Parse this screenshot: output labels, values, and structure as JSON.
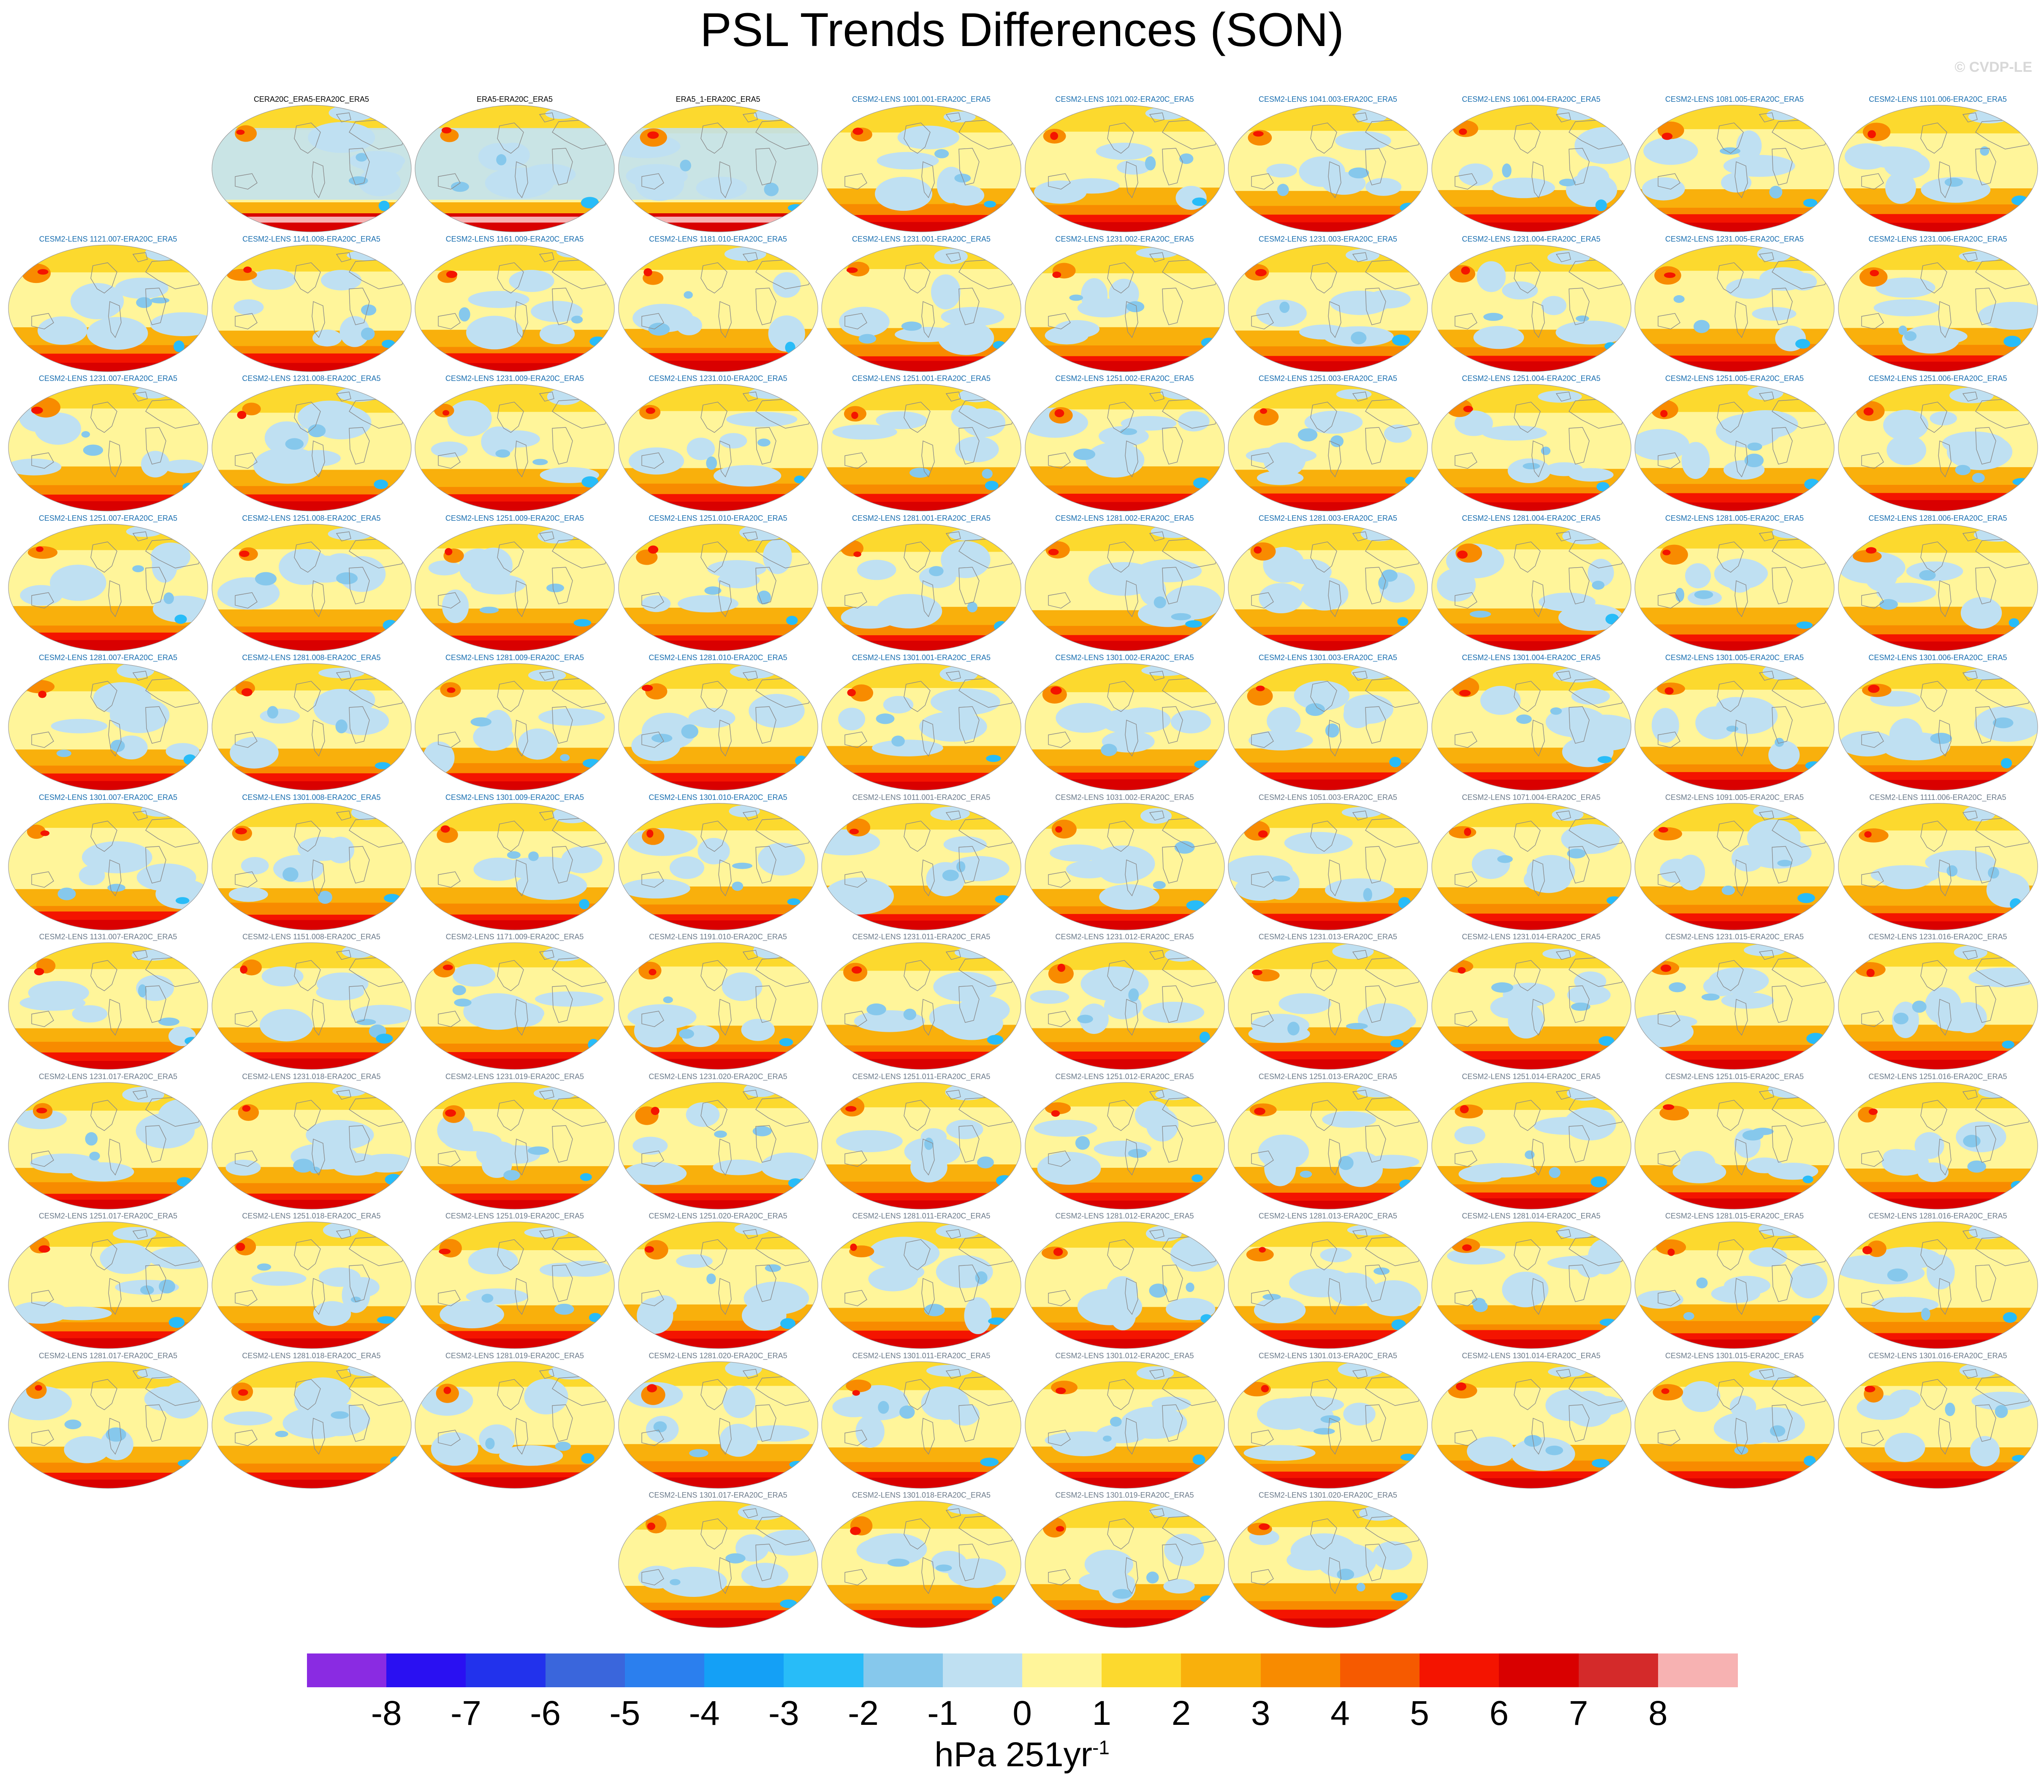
{
  "title": "PSL Trends Differences (SON)",
  "watermark": "© CVDP-LE",
  "colors": {
    "obs_label": "#000000",
    "member_label_blue": "#1a6fb0",
    "member_label_gray": "#6c7b8b",
    "coast": "#8a8a8a"
  },
  "chart_data": {
    "type": "heatmap",
    "title": "PSL Trends Differences (SON)",
    "panels": [
      {
        "label": "CERA20C_ERA5-ERA20C_ERA5",
        "style": "obs"
      },
      {
        "label": "ERA5-ERA20C_ERA5",
        "style": "obs"
      },
      {
        "label": "ERA5_1-ERA20C_ERA5",
        "style": "obs"
      },
      {
        "label": "CESM2-LENS 1001.001-ERA20C_ERA5",
        "style": "blue"
      },
      {
        "label": "CESM2-LENS 1021.002-ERA20C_ERA5",
        "style": "blue"
      },
      {
        "label": "CESM2-LENS 1041.003-ERA20C_ERA5",
        "style": "blue"
      },
      {
        "label": "CESM2-LENS 1061.004-ERA20C_ERA5",
        "style": "blue"
      },
      {
        "label": "CESM2-LENS 1081.005-ERA20C_ERA5",
        "style": "blue"
      },
      {
        "label": "CESM2-LENS 1101.006-ERA20C_ERA5",
        "style": "blue"
      },
      {
        "label": "CESM2-LENS 1121.007-ERA20C_ERA5",
        "style": "blue"
      },
      {
        "label": "CESM2-LENS 1141.008-ERA20C_ERA5",
        "style": "blue"
      },
      {
        "label": "CESM2-LENS 1161.009-ERA20C_ERA5",
        "style": "blue"
      },
      {
        "label": "CESM2-LENS 1181.010-ERA20C_ERA5",
        "style": "blue"
      },
      {
        "label": "CESM2-LENS 1231.001-ERA20C_ERA5",
        "style": "blue"
      },
      {
        "label": "CESM2-LENS 1231.002-ERA20C_ERA5",
        "style": "blue"
      },
      {
        "label": "CESM2-LENS 1231.003-ERA20C_ERA5",
        "style": "blue"
      },
      {
        "label": "CESM2-LENS 1231.004-ERA20C_ERA5",
        "style": "blue"
      },
      {
        "label": "CESM2-LENS 1231.005-ERA20C_ERA5",
        "style": "blue"
      },
      {
        "label": "CESM2-LENS 1231.006-ERA20C_ERA5",
        "style": "blue"
      },
      {
        "label": "CESM2-LENS 1231.007-ERA20C_ERA5",
        "style": "blue"
      },
      {
        "label": "CESM2-LENS 1231.008-ERA20C_ERA5",
        "style": "blue"
      },
      {
        "label": "CESM2-LENS 1231.009-ERA20C_ERA5",
        "style": "blue"
      },
      {
        "label": "CESM2-LENS 1231.010-ERA20C_ERA5",
        "style": "blue"
      },
      {
        "label": "CESM2-LENS 1251.001-ERA20C_ERA5",
        "style": "blue"
      },
      {
        "label": "CESM2-LENS 1251.002-ERA20C_ERA5",
        "style": "blue"
      },
      {
        "label": "CESM2-LENS 1251.003-ERA20C_ERA5",
        "style": "blue"
      },
      {
        "label": "CESM2-LENS 1251.004-ERA20C_ERA5",
        "style": "blue"
      },
      {
        "label": "CESM2-LENS 1251.005-ERA20C_ERA5",
        "style": "blue"
      },
      {
        "label": "CESM2-LENS 1251.006-ERA20C_ERA5",
        "style": "blue"
      },
      {
        "label": "CESM2-LENS 1251.007-ERA20C_ERA5",
        "style": "blue"
      },
      {
        "label": "CESM2-LENS 1251.008-ERA20C_ERA5",
        "style": "blue"
      },
      {
        "label": "CESM2-LENS 1251.009-ERA20C_ERA5",
        "style": "blue"
      },
      {
        "label": "CESM2-LENS 1251.010-ERA20C_ERA5",
        "style": "blue"
      },
      {
        "label": "CESM2-LENS 1281.001-ERA20C_ERA5",
        "style": "blue"
      },
      {
        "label": "CESM2-LENS 1281.002-ERA20C_ERA5",
        "style": "blue"
      },
      {
        "label": "CESM2-LENS 1281.003-ERA20C_ERA5",
        "style": "blue"
      },
      {
        "label": "CESM2-LENS 1281.004-ERA20C_ERA5",
        "style": "blue"
      },
      {
        "label": "CESM2-LENS 1281.005-ERA20C_ERA5",
        "style": "blue"
      },
      {
        "label": "CESM2-LENS 1281.006-ERA20C_ERA5",
        "style": "blue"
      },
      {
        "label": "CESM2-LENS 1281.007-ERA20C_ERA5",
        "style": "blue"
      },
      {
        "label": "CESM2-LENS 1281.008-ERA20C_ERA5",
        "style": "blue"
      },
      {
        "label": "CESM2-LENS 1281.009-ERA20C_ERA5",
        "style": "blue"
      },
      {
        "label": "CESM2-LENS 1281.010-ERA20C_ERA5",
        "style": "blue"
      },
      {
        "label": "CESM2-LENS 1301.001-ERA20C_ERA5",
        "style": "blue"
      },
      {
        "label": "CESM2-LENS 1301.002-ERA20C_ERA5",
        "style": "blue"
      },
      {
        "label": "CESM2-LENS 1301.003-ERA20C_ERA5",
        "style": "blue"
      },
      {
        "label": "CESM2-LENS 1301.004-ERA20C_ERA5",
        "style": "blue"
      },
      {
        "label": "CESM2-LENS 1301.005-ERA20C_ERA5",
        "style": "blue"
      },
      {
        "label": "CESM2-LENS 1301.006-ERA20C_ERA5",
        "style": "blue"
      },
      {
        "label": "CESM2-LENS 1301.007-ERA20C_ERA5",
        "style": "blue"
      },
      {
        "label": "CESM2-LENS 1301.008-ERA20C_ERA5",
        "style": "blue"
      },
      {
        "label": "CESM2-LENS 1301.009-ERA20C_ERA5",
        "style": "blue"
      },
      {
        "label": "CESM2-LENS 1301.010-ERA20C_ERA5",
        "style": "blue"
      },
      {
        "label": "CESM2-LENS 1011.001-ERA20C_ERA5",
        "style": "gray"
      },
      {
        "label": "CESM2-LENS 1031.002-ERA20C_ERA5",
        "style": "gray"
      },
      {
        "label": "CESM2-LENS 1051.003-ERA20C_ERA5",
        "style": "gray"
      },
      {
        "label": "CESM2-LENS 1071.004-ERA20C_ERA5",
        "style": "gray"
      },
      {
        "label": "CESM2-LENS 1091.005-ERA20C_ERA5",
        "style": "gray"
      },
      {
        "label": "CESM2-LENS 1111.006-ERA20C_ERA5",
        "style": "gray"
      },
      {
        "label": "CESM2-LENS 1131.007-ERA20C_ERA5",
        "style": "gray"
      },
      {
        "label": "CESM2-LENS 1151.008-ERA20C_ERA5",
        "style": "gray"
      },
      {
        "label": "CESM2-LENS 1171.009-ERA20C_ERA5",
        "style": "gray"
      },
      {
        "label": "CESM2-LENS 1191.010-ERA20C_ERA5",
        "style": "gray"
      },
      {
        "label": "CESM2-LENS 1231.011-ERA20C_ERA5",
        "style": "gray"
      },
      {
        "label": "CESM2-LENS 1231.012-ERA20C_ERA5",
        "style": "gray"
      },
      {
        "label": "CESM2-LENS 1231.013-ERA20C_ERA5",
        "style": "gray"
      },
      {
        "label": "CESM2-LENS 1231.014-ERA20C_ERA5",
        "style": "gray"
      },
      {
        "label": "CESM2-LENS 1231.015-ERA20C_ERA5",
        "style": "gray"
      },
      {
        "label": "CESM2-LENS 1231.016-ERA20C_ERA5",
        "style": "gray"
      },
      {
        "label": "CESM2-LENS 1231.017-ERA20C_ERA5",
        "style": "gray"
      },
      {
        "label": "CESM2-LENS 1231.018-ERA20C_ERA5",
        "style": "gray"
      },
      {
        "label": "CESM2-LENS 1231.019-ERA20C_ERA5",
        "style": "gray"
      },
      {
        "label": "CESM2-LENS 1231.020-ERA20C_ERA5",
        "style": "gray"
      },
      {
        "label": "CESM2-LENS 1251.011-ERA20C_ERA5",
        "style": "gray"
      },
      {
        "label": "CESM2-LENS 1251.012-ERA20C_ERA5",
        "style": "gray"
      },
      {
        "label": "CESM2-LENS 1251.013-ERA20C_ERA5",
        "style": "gray"
      },
      {
        "label": "CESM2-LENS 1251.014-ERA20C_ERA5",
        "style": "gray"
      },
      {
        "label": "CESM2-LENS 1251.015-ERA20C_ERA5",
        "style": "gray"
      },
      {
        "label": "CESM2-LENS 1251.016-ERA20C_ERA5",
        "style": "gray"
      },
      {
        "label": "CESM2-LENS 1251.017-ERA20C_ERA5",
        "style": "gray"
      },
      {
        "label": "CESM2-LENS 1251.018-ERA20C_ERA5",
        "style": "gray"
      },
      {
        "label": "CESM2-LENS 1251.019-ERA20C_ERA5",
        "style": "gray"
      },
      {
        "label": "CESM2-LENS 1251.020-ERA20C_ERA5",
        "style": "gray"
      },
      {
        "label": "CESM2-LENS 1281.011-ERA20C_ERA5",
        "style": "gray"
      },
      {
        "label": "CESM2-LENS 1281.012-ERA20C_ERA5",
        "style": "gray"
      },
      {
        "label": "CESM2-LENS 1281.013-ERA20C_ERA5",
        "style": "gray"
      },
      {
        "label": "CESM2-LENS 1281.014-ERA20C_ERA5",
        "style": "gray"
      },
      {
        "label": "CESM2-LENS 1281.015-ERA20C_ERA5",
        "style": "gray"
      },
      {
        "label": "CESM2-LENS 1281.016-ERA20C_ERA5",
        "style": "gray"
      },
      {
        "label": "CESM2-LENS 1281.017-ERA20C_ERA5",
        "style": "gray"
      },
      {
        "label": "CESM2-LENS 1281.018-ERA20C_ERA5",
        "style": "gray"
      },
      {
        "label": "CESM2-LENS 1281.019-ERA20C_ERA5",
        "style": "gray"
      },
      {
        "label": "CESM2-LENS 1281.020-ERA20C_ERA5",
        "style": "gray"
      },
      {
        "label": "CESM2-LENS 1301.011-ERA20C_ERA5",
        "style": "gray"
      },
      {
        "label": "CESM2-LENS 1301.012-ERA20C_ERA5",
        "style": "gray"
      },
      {
        "label": "CESM2-LENS 1301.013-ERA20C_ERA5",
        "style": "gray"
      },
      {
        "label": "CESM2-LENS 1301.014-ERA20C_ERA5",
        "style": "gray"
      },
      {
        "label": "CESM2-LENS 1301.015-ERA20C_ERA5",
        "style": "gray"
      },
      {
        "label": "CESM2-LENS 1301.016-ERA20C_ERA5",
        "style": "gray"
      },
      {
        "label": "CESM2-LENS 1301.017-ERA20C_ERA5",
        "style": "gray"
      },
      {
        "label": "CESM2-LENS 1301.018-ERA20C_ERA5",
        "style": "gray"
      },
      {
        "label": "CESM2-LENS 1301.019-ERA20C_ERA5",
        "style": "gray"
      },
      {
        "label": "CESM2-LENS 1301.020-ERA20C_ERA5",
        "style": "gray"
      }
    ],
    "colorbar": {
      "ticks": [
        "-8",
        "-7",
        "-6",
        "-5",
        "-4",
        "-3",
        "-2",
        "-1",
        "0",
        "1",
        "2",
        "3",
        "4",
        "5",
        "6",
        "7",
        "8"
      ],
      "colors": [
        "#8a2be2",
        "#2a10f2",
        "#2232ec",
        "#3a66dc",
        "#2b7fee",
        "#14a0f6",
        "#28bcf8",
        "#86c8ec",
        "#bfe0f2",
        "#fff59a",
        "#fcd92e",
        "#f9b00c",
        "#f88b00",
        "#f65a00",
        "#f41400",
        "#d90000",
        "#d42a2a",
        "#f7b2b2"
      ],
      "units": "hPa 251yr",
      "units_superscript": "-1"
    }
  }
}
